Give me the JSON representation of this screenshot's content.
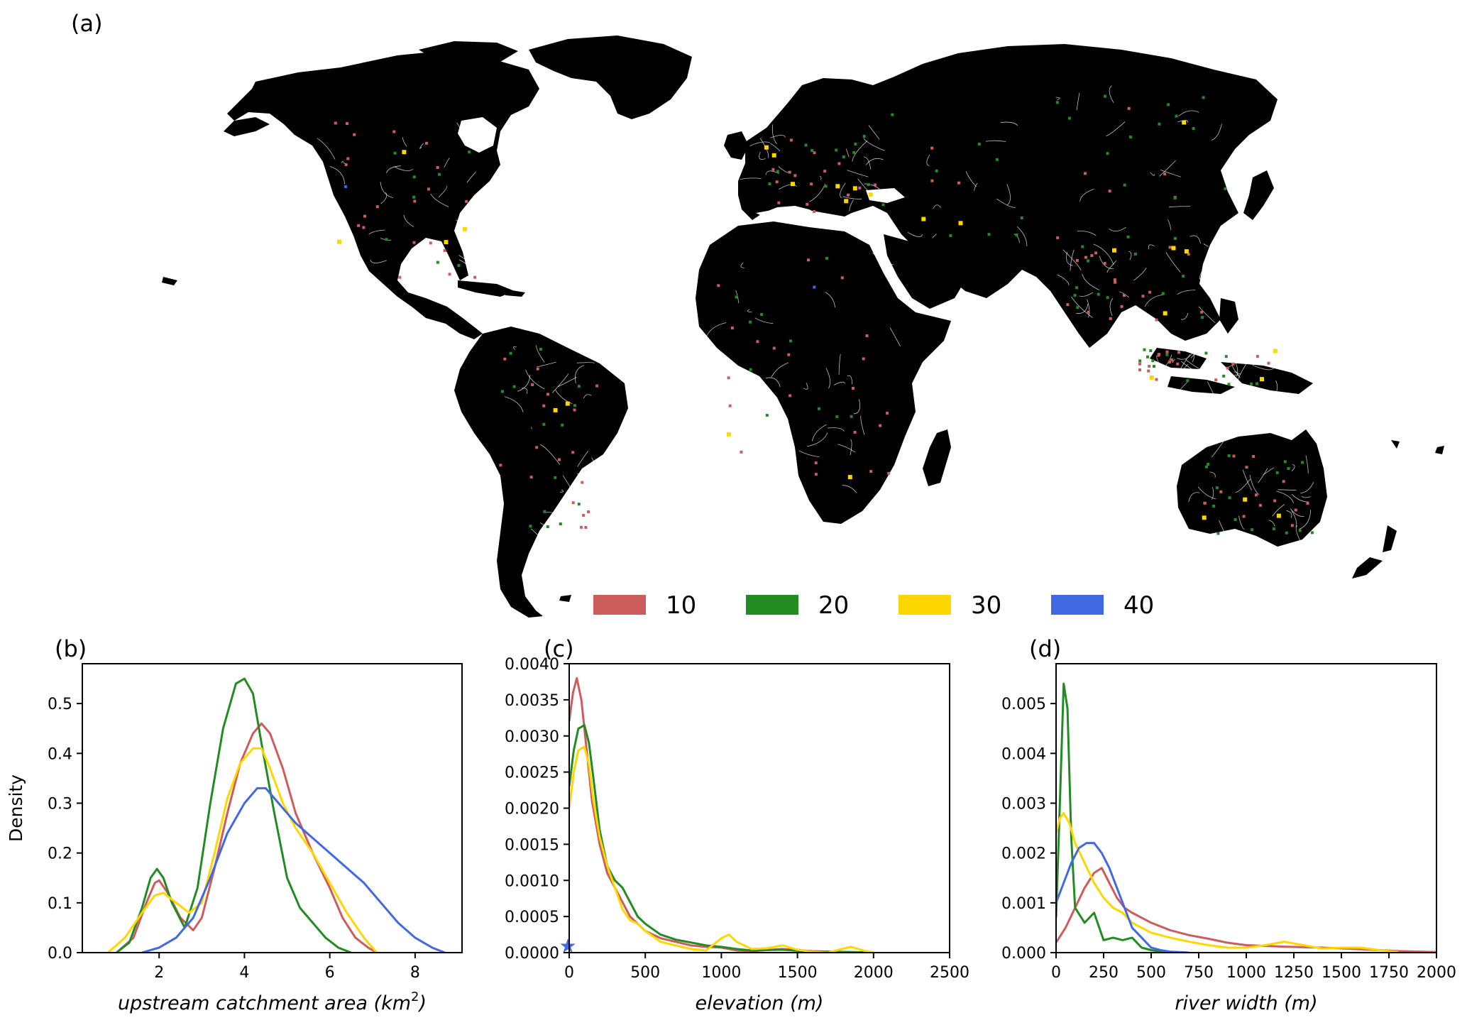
{
  "panel_labels": {
    "a": "(a)",
    "b": "(b)",
    "c": "(c)",
    "d": "(d)"
  },
  "legend": {
    "items": [
      {
        "label": "10",
        "color": "#cd5c5c"
      },
      {
        "label": "20",
        "color": "#228b22"
      },
      {
        "label": "30",
        "color": "#ffd700"
      },
      {
        "label": "40",
        "color": "#4169e1"
      }
    ]
  },
  "map": {
    "land_color": "#000000",
    "river_color": "#ffffff",
    "sample_marker_colors": [
      "#cd5c5c",
      "#228b22",
      "#ffd700",
      "#4169e1"
    ]
  },
  "chart_data": [
    {
      "id": "b",
      "type": "line",
      "xlabel_main": "upstream catchment area (km",
      "xlabel_sup": "2",
      "xlabel_close": ")",
      "ylabel": "Density",
      "xlim": [
        0.2,
        9.1
      ],
      "ylim": [
        0,
        0.58
      ],
      "xticks": [
        2,
        4,
        6,
        8
      ],
      "xtick_labels": [
        "2",
        "4",
        "6",
        "8"
      ],
      "yticks": [
        0.0,
        0.1,
        0.2,
        0.3,
        0.4,
        0.5
      ],
      "ytick_labels": [
        "0.0",
        "0.1",
        "0.2",
        "0.3",
        "0.4",
        "0.5"
      ],
      "series": [
        {
          "color": "#cd5c5c",
          "x": [
            1.0,
            1.4,
            1.7,
            1.9,
            2.0,
            2.2,
            2.5,
            2.8,
            3.0,
            3.3,
            3.6,
            3.9,
            4.2,
            4.4,
            4.6,
            4.9,
            5.2,
            5.6,
            6.0,
            6.3,
            6.6,
            6.9,
            7.1
          ],
          "y": [
            0.0,
            0.03,
            0.1,
            0.14,
            0.145,
            0.12,
            0.07,
            0.045,
            0.07,
            0.17,
            0.28,
            0.38,
            0.44,
            0.46,
            0.44,
            0.37,
            0.28,
            0.2,
            0.13,
            0.07,
            0.03,
            0.01,
            0.0
          ]
        },
        {
          "color": "#228b22",
          "x": [
            1.0,
            1.3,
            1.6,
            1.8,
            1.95,
            2.1,
            2.3,
            2.6,
            2.9,
            3.2,
            3.5,
            3.8,
            4.0,
            4.2,
            4.4,
            4.7,
            5.0,
            5.3,
            5.6,
            5.9,
            6.2,
            6.5
          ],
          "y": [
            0.0,
            0.02,
            0.09,
            0.15,
            0.168,
            0.15,
            0.1,
            0.05,
            0.13,
            0.3,
            0.45,
            0.54,
            0.55,
            0.52,
            0.42,
            0.28,
            0.15,
            0.09,
            0.06,
            0.03,
            0.01,
            0.0
          ]
        },
        {
          "color": "#ffd700",
          "x": [
            0.8,
            1.2,
            1.6,
            1.9,
            2.1,
            2.4,
            2.7,
            3.0,
            3.3,
            3.6,
            3.9,
            4.2,
            4.4,
            4.6,
            4.9,
            5.2,
            5.6,
            6.0,
            6.4,
            6.8,
            7.1
          ],
          "y": [
            0.0,
            0.03,
            0.08,
            0.115,
            0.12,
            0.1,
            0.08,
            0.1,
            0.2,
            0.31,
            0.38,
            0.41,
            0.41,
            0.37,
            0.3,
            0.25,
            0.2,
            0.14,
            0.08,
            0.03,
            0.0
          ]
        },
        {
          "color": "#4169e1",
          "x": [
            1.6,
            2.0,
            2.4,
            2.8,
            3.2,
            3.6,
            4.0,
            4.3,
            4.5,
            4.8,
            5.2,
            5.6,
            6.0,
            6.4,
            6.8,
            7.2,
            7.6,
            8.0,
            8.4,
            8.7
          ],
          "y": [
            0.0,
            0.01,
            0.03,
            0.07,
            0.15,
            0.24,
            0.3,
            0.33,
            0.33,
            0.3,
            0.26,
            0.23,
            0.2,
            0.17,
            0.14,
            0.1,
            0.06,
            0.03,
            0.01,
            0.0
          ]
        }
      ]
    },
    {
      "id": "c",
      "type": "line",
      "xlabel_main": "elevation (m)",
      "xlabel_sup": "",
      "xlabel_close": "",
      "ylabel": "",
      "xlim": [
        0,
        2500
      ],
      "ylim": [
        0,
        0.004
      ],
      "xticks": [
        0,
        500,
        1000,
        1500,
        2000,
        2500
      ],
      "xtick_labels": [
        "0",
        "500",
        "1000",
        "1500",
        "2000",
        "2500"
      ],
      "yticks": [
        0,
        0.0005,
        0.001,
        0.0015,
        0.002,
        0.0025,
        0.003,
        0.0035,
        0.004
      ],
      "ytick_labels": [
        "0.0000",
        "0.0005",
        "0.0010",
        "0.0015",
        "0.0020",
        "0.0025",
        "0.0030",
        "0.0035",
        "0.0040"
      ],
      "marker": {
        "x": 0,
        "y": 0.0001,
        "color": "#4169e1",
        "symbol": "★"
      },
      "series": [
        {
          "color": "#cd5c5c",
          "x": [
            0,
            25,
            50,
            80,
            110,
            150,
            200,
            250,
            300,
            350,
            400,
            450,
            500,
            600,
            700,
            800,
            900,
            1000,
            1100,
            1200,
            1400,
            1600,
            1800,
            2000
          ],
          "y": [
            0.0032,
            0.0036,
            0.0038,
            0.0035,
            0.0029,
            0.0021,
            0.0015,
            0.0011,
            0.0009,
            0.0007,
            0.0005,
            0.0004,
            0.0003,
            0.0002,
            0.00015,
            0.0001,
            8e-05,
            7e-05,
            3e-05,
            2e-05,
            5e-05,
            2e-05,
            1e-05,
            0.0
          ]
        },
        {
          "color": "#228b22",
          "x": [
            0,
            30,
            60,
            100,
            130,
            160,
            200,
            250,
            300,
            350,
            400,
            450,
            500,
            600,
            700,
            800,
            900,
            1000,
            1100,
            1200,
            1400,
            1600,
            1800,
            2000
          ],
          "y": [
            0.0023,
            0.0028,
            0.0031,
            0.00315,
            0.0029,
            0.0024,
            0.0017,
            0.0012,
            0.001,
            0.0009,
            0.0007,
            0.0005,
            0.0004,
            0.00025,
            0.00018,
            0.00014,
            0.0001,
            8e-05,
            5e-05,
            3e-05,
            4e-05,
            1e-05,
            1e-05,
            0.0
          ]
        },
        {
          "color": "#ffd700",
          "x": [
            0,
            30,
            60,
            100,
            130,
            160,
            200,
            250,
            300,
            350,
            400,
            450,
            500,
            600,
            700,
            800,
            900,
            1000,
            1050,
            1100,
            1200,
            1300,
            1400,
            1500,
            1600,
            1700,
            1850,
            1950,
            2000
          ],
          "y": [
            0.002,
            0.0025,
            0.0028,
            0.00285,
            0.0026,
            0.0021,
            0.0016,
            0.0012,
            0.0009,
            0.0006,
            0.00045,
            0.0004,
            0.0003,
            0.00015,
            0.0001,
            5e-05,
            3e-05,
            0.0002,
            0.00025,
            0.00015,
            5e-05,
            6e-05,
            0.0001,
            4e-05,
            1e-05,
            0.0,
            8e-05,
            2e-05,
            0.0
          ]
        }
      ]
    },
    {
      "id": "d",
      "type": "line",
      "xlabel_main": "river width (m)",
      "xlabel_sup": "",
      "xlabel_close": "",
      "ylabel": "",
      "xlim": [
        0,
        2000
      ],
      "ylim": [
        0,
        0.0058
      ],
      "xticks": [
        0,
        250,
        500,
        750,
        1000,
        1250,
        1500,
        1750,
        2000
      ],
      "xtick_labels": [
        "0",
        "250",
        "500",
        "750",
        "1000",
        "1250",
        "1500",
        "1750",
        "2000"
      ],
      "yticks": [
        0,
        0.001,
        0.002,
        0.003,
        0.004,
        0.005
      ],
      "ytick_labels": [
        "0.000",
        "0.001",
        "0.002",
        "0.003",
        "0.004",
        "0.005"
      ],
      "series": [
        {
          "color": "#cd5c5c",
          "x": [
            0,
            50,
            100,
            150,
            200,
            240,
            280,
            320,
            360,
            400,
            500,
            600,
            700,
            800,
            900,
            1000,
            1200,
            1400,
            1600,
            1800,
            2000
          ],
          "y": [
            0.0002,
            0.0005,
            0.0009,
            0.0013,
            0.0016,
            0.0017,
            0.0014,
            0.0011,
            0.0009,
            0.0008,
            0.0006,
            0.00045,
            0.00035,
            0.00028,
            0.0002,
            0.00015,
            0.00012,
            0.0001,
            7e-05,
            3e-05,
            1e-05
          ]
        },
        {
          "color": "#228b22",
          "x": [
            0,
            20,
            40,
            60,
            80,
            100,
            150,
            200,
            250,
            300,
            350,
            400,
            450,
            500,
            550,
            600,
            700
          ],
          "y": [
            0.0007,
            0.003,
            0.0054,
            0.0049,
            0.0023,
            0.0009,
            0.0006,
            0.0008,
            0.00025,
            0.0003,
            0.00025,
            0.0003,
            0.0001,
            5e-05,
            2e-05,
            1e-05,
            0.0
          ]
        },
        {
          "color": "#ffd700",
          "x": [
            0,
            20,
            40,
            70,
            100,
            150,
            200,
            250,
            300,
            350,
            400,
            500,
            600,
            700,
            800,
            900,
            1000,
            1100,
            1200,
            1300,
            1400,
            1500,
            1600,
            1700,
            1800
          ],
          "y": [
            0.0024,
            0.0027,
            0.0028,
            0.0026,
            0.0022,
            0.0018,
            0.0014,
            0.0011,
            0.0009,
            0.0008,
            0.0006,
            0.0004,
            0.0003,
            0.00022,
            0.00015,
            0.0001,
            0.0001,
            0.00015,
            0.00022,
            0.00015,
            8e-05,
            0.0001,
            0.0001,
            5e-05,
            1e-05
          ]
        },
        {
          "color": "#4169e1",
          "x": [
            0,
            40,
            80,
            120,
            160,
            200,
            240,
            280,
            320,
            360,
            400,
            450,
            500,
            550,
            600,
            650,
            700
          ],
          "y": [
            0.001,
            0.0014,
            0.0018,
            0.0021,
            0.0022,
            0.0022,
            0.002,
            0.0017,
            0.0013,
            0.0009,
            0.0005,
            0.0003,
            0.0001,
            5e-05,
            2e-05,
            1e-05,
            0.0
          ]
        }
      ]
    }
  ]
}
